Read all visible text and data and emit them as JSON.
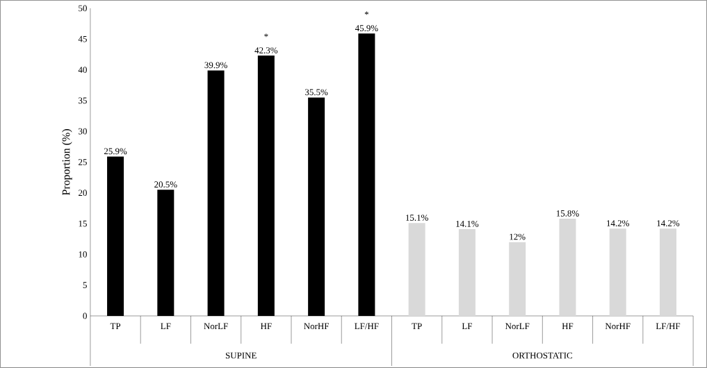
{
  "chart_data": {
    "type": "bar",
    "ylabel": "Proportion (%)",
    "categories": [
      "TP",
      "LF",
      "NorLF",
      "HF",
      "NorHF",
      "LF/HF",
      "TP",
      "LF",
      "NorLF",
      "HF",
      "NorHF",
      "LF/HF"
    ],
    "values": [
      25.9,
      20.5,
      39.9,
      42.3,
      35.5,
      45.9,
      15.1,
      14.1,
      12,
      15.8,
      14.2,
      14.2
    ],
    "colors": [
      "#000000",
      "#000000",
      "#000000",
      "#000000",
      "#000000",
      "#000000",
      "#d9d9d9",
      "#d9d9d9",
      "#d9d9d9",
      "#d9d9d9",
      "#d9d9d9",
      "#d9d9d9"
    ],
    "value_labels": [
      "25.9%",
      "20.5%",
      "39.9%",
      "42.3%",
      "35.5%",
      "45.9%",
      "15.1%",
      "14.1%",
      "12%",
      "15.8%",
      "14.2%",
      "14.2%"
    ],
    "ylim": [
      0,
      50
    ],
    "yticks": [
      0,
      5,
      10,
      15,
      20,
      25,
      30,
      35,
      40,
      45,
      50
    ],
    "annotations": [
      "SUPINE",
      "ORTHOSTATIC",
      {
        "text": "*",
        "x": "HF",
        "y": 42.3
      },
      {
        "text": "*",
        "x": "LF/HF",
        "y": 45.9
      }
    ]
  }
}
